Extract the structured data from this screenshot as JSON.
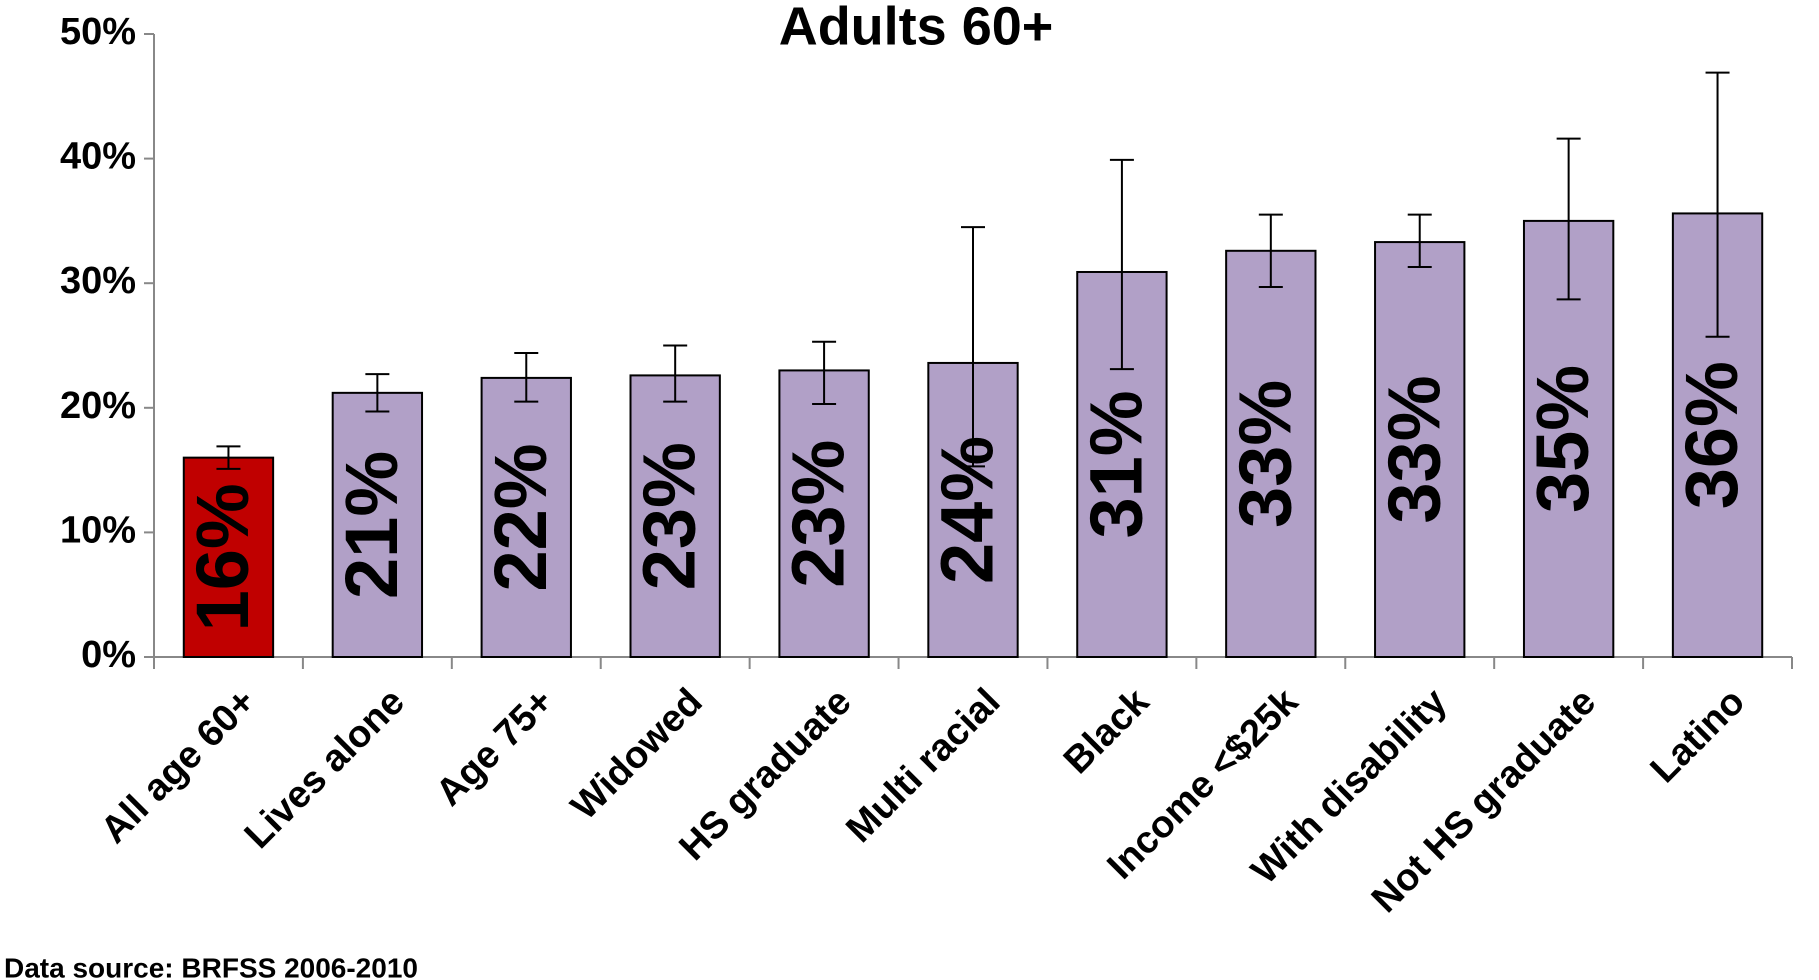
{
  "chart_data": {
    "type": "bar",
    "title": "Adults 60+",
    "categories": [
      "All age 60+",
      "Lives alone",
      "Age 75+",
      "Widowed",
      "HS graduate",
      "Multi racial",
      "Black",
      "Income <$25k",
      "With disability",
      "Not HS graduate",
      "Latino"
    ],
    "values": [
      16,
      21.2,
      22.4,
      22.6,
      23,
      23.6,
      30.9,
      32.6,
      33.3,
      35,
      35.6
    ],
    "value_labels": [
      "16%",
      "21%",
      "22%",
      "23%",
      "23%",
      "24%",
      "31%",
      "33%",
      "33%",
      "35%",
      "36%"
    ],
    "error_low": [
      15.1,
      19.7,
      20.5,
      20.5,
      20.3,
      15.3,
      23.1,
      29.7,
      31.3,
      28.7,
      25.7
    ],
    "error_high": [
      16.9,
      22.7,
      24.4,
      25.0,
      25.3,
      34.5,
      39.9,
      35.5,
      35.5,
      41.6,
      46.9
    ],
    "colors": [
      "#c00000",
      "#b1a0c7",
      "#b1a0c7",
      "#b1a0c7",
      "#b1a0c7",
      "#b1a0c7",
      "#b1a0c7",
      "#b1a0c7",
      "#b1a0c7",
      "#b1a0c7",
      "#b1a0c7"
    ],
    "ylim": [
      0,
      50
    ],
    "yticks": [
      {
        "value": 0,
        "label": "0%"
      },
      {
        "value": 10,
        "label": "10%"
      },
      {
        "value": 20,
        "label": "20%"
      },
      {
        "value": 30,
        "label": "30%"
      },
      {
        "value": 40,
        "label": "40%"
      },
      {
        "value": 50,
        "label": "50%"
      }
    ],
    "footnote": "Data source: BRFSS 2006-2010"
  }
}
